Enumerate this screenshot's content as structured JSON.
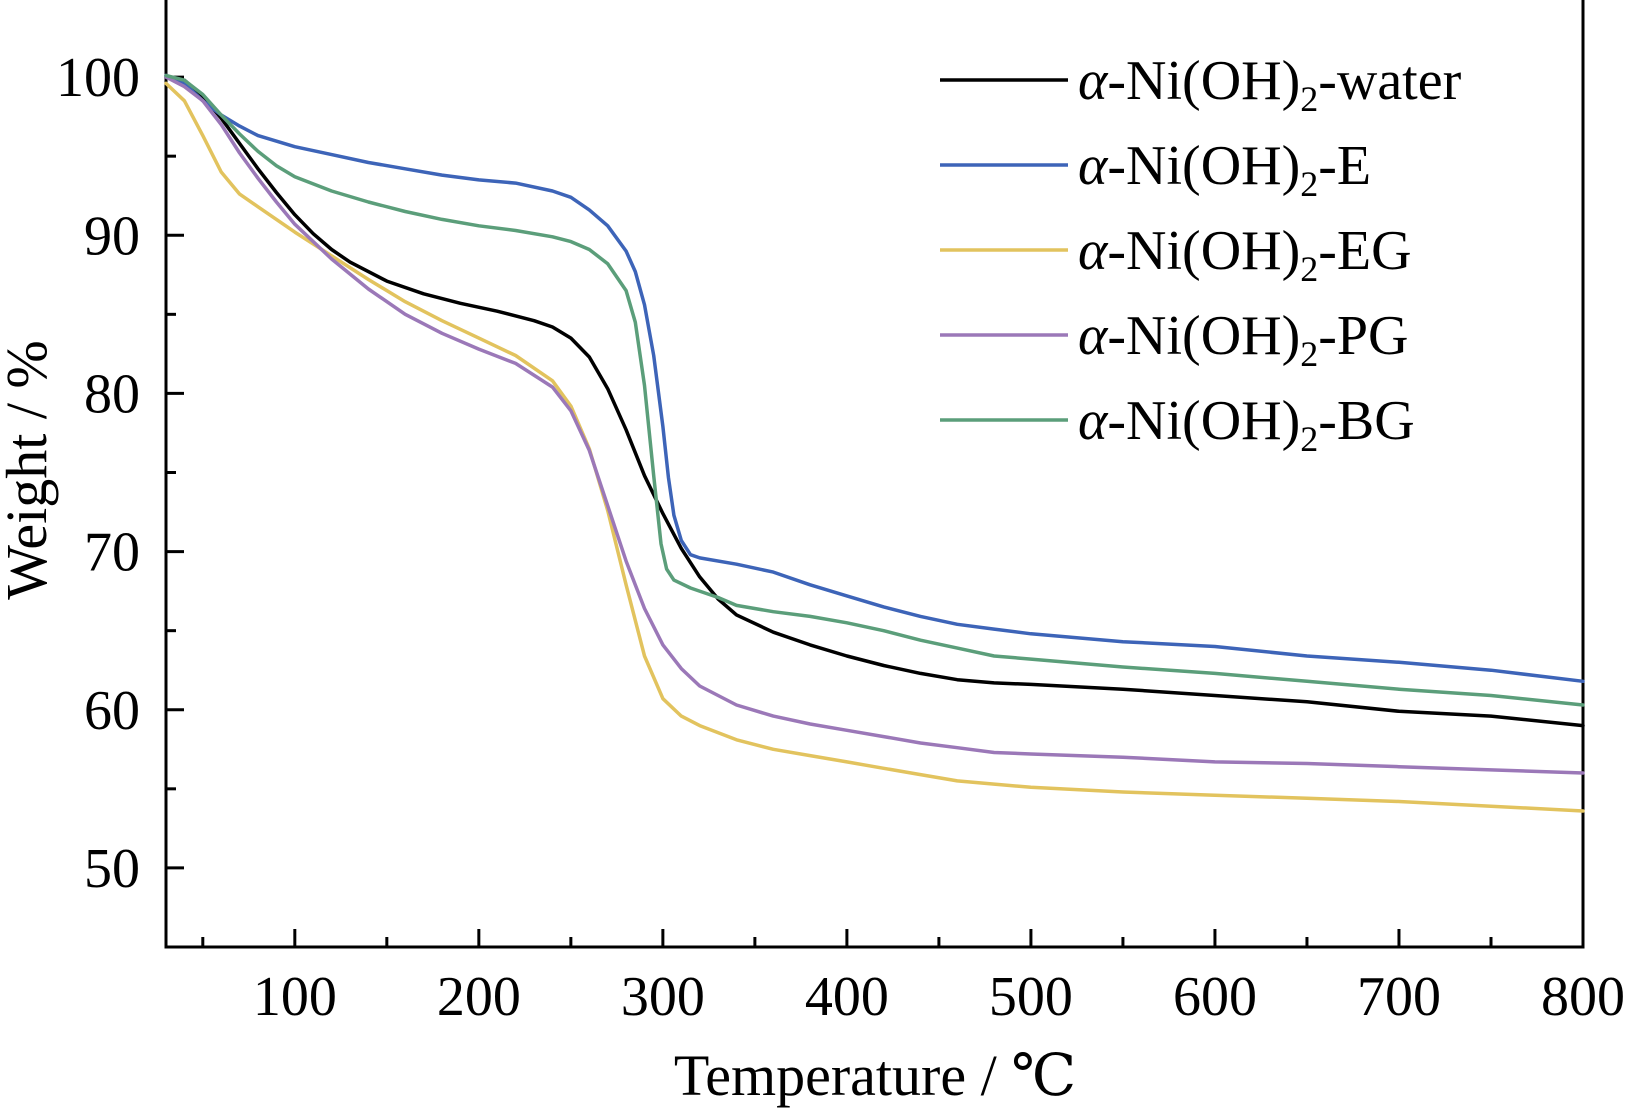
{
  "chart_data": {
    "type": "line",
    "xlabel": "Temperature / ℃",
    "ylabel": "Weight / %",
    "xlim": [
      30,
      800
    ],
    "ylim": [
      45,
      105
    ],
    "x_ticks": [
      100,
      200,
      300,
      400,
      500,
      600,
      700,
      800
    ],
    "y_ticks": [
      50,
      60,
      70,
      80,
      90,
      100
    ],
    "grid": false,
    "legend_position": "top-right",
    "series": [
      {
        "name": "α-Ni(OH)2-water",
        "legend": {
          "prefix": "α",
          "main": "-Ni(OH)",
          "sub": "2",
          "suffix": "-water"
        },
        "color": "#000000",
        "points": [
          [
            30,
            100
          ],
          [
            40,
            99.8
          ],
          [
            50,
            98.8
          ],
          [
            60,
            97.4
          ],
          [
            70,
            95.8
          ],
          [
            80,
            94.2
          ],
          [
            90,
            92.7
          ],
          [
            100,
            91.3
          ],
          [
            110,
            90.1
          ],
          [
            120,
            89.1
          ],
          [
            130,
            88.3
          ],
          [
            150,
            87.1
          ],
          [
            170,
            86.3
          ],
          [
            190,
            85.7
          ],
          [
            210,
            85.2
          ],
          [
            230,
            84.6
          ],
          [
            240,
            84.2
          ],
          [
            250,
            83.5
          ],
          [
            260,
            82.3
          ],
          [
            270,
            80.3
          ],
          [
            280,
            77.7
          ],
          [
            290,
            74.8
          ],
          [
            300,
            72.4
          ],
          [
            310,
            70.2
          ],
          [
            320,
            68.4
          ],
          [
            330,
            67
          ],
          [
            340,
            66
          ],
          [
            360,
            64.9
          ],
          [
            380,
            64.1
          ],
          [
            400,
            63.4
          ],
          [
            420,
            62.8
          ],
          [
            440,
            62.3
          ],
          [
            460,
            61.9
          ],
          [
            480,
            61.7
          ],
          [
            500,
            61.6
          ],
          [
            550,
            61.3
          ],
          [
            600,
            60.9
          ],
          [
            650,
            60.5
          ],
          [
            700,
            59.9
          ],
          [
            750,
            59.6
          ],
          [
            800,
            59
          ]
        ]
      },
      {
        "name": "α-Ni(OH)2-E",
        "legend": {
          "prefix": "α",
          "main": "-Ni(OH)",
          "sub": "2",
          "suffix": "-E"
        },
        "color": "#3d64b8",
        "points": [
          [
            30,
            100.1
          ],
          [
            40,
            99.6
          ],
          [
            50,
            98.5
          ],
          [
            60,
            97.6
          ],
          [
            70,
            96.9
          ],
          [
            80,
            96.3
          ],
          [
            100,
            95.6
          ],
          [
            120,
            95.1
          ],
          [
            140,
            94.6
          ],
          [
            160,
            94.2
          ],
          [
            180,
            93.8
          ],
          [
            200,
            93.5
          ],
          [
            220,
            93.3
          ],
          [
            240,
            92.8
          ],
          [
            250,
            92.4
          ],
          [
            260,
            91.6
          ],
          [
            270,
            90.6
          ],
          [
            280,
            89
          ],
          [
            285,
            87.7
          ],
          [
            290,
            85.6
          ],
          [
            295,
            82.4
          ],
          [
            300,
            77.9
          ],
          [
            303,
            74.7
          ],
          [
            306,
            72.3
          ],
          [
            310,
            70.7
          ],
          [
            315,
            69.8
          ],
          [
            320,
            69.6
          ],
          [
            340,
            69.2
          ],
          [
            360,
            68.7
          ],
          [
            380,
            67.9
          ],
          [
            400,
            67.2
          ],
          [
            420,
            66.5
          ],
          [
            440,
            65.9
          ],
          [
            460,
            65.4
          ],
          [
            480,
            65.1
          ],
          [
            500,
            64.8
          ],
          [
            550,
            64.3
          ],
          [
            600,
            64
          ],
          [
            650,
            63.4
          ],
          [
            700,
            63
          ],
          [
            750,
            62.5
          ],
          [
            800,
            61.8
          ]
        ]
      },
      {
        "name": "α-Ni(OH)2-EG",
        "legend": {
          "prefix": "α",
          "main": "-Ni(OH)",
          "sub": "2",
          "suffix": "-EG"
        },
        "color": "#e2c35e",
        "points": [
          [
            30,
            99.6
          ],
          [
            40,
            98.5
          ],
          [
            50,
            96.3
          ],
          [
            60,
            94
          ],
          [
            70,
            92.6
          ],
          [
            80,
            91.8
          ],
          [
            90,
            91
          ],
          [
            100,
            90.2
          ],
          [
            120,
            88.7
          ],
          [
            140,
            87.2
          ],
          [
            160,
            85.8
          ],
          [
            180,
            84.6
          ],
          [
            200,
            83.5
          ],
          [
            220,
            82.4
          ],
          [
            240,
            80.8
          ],
          [
            250,
            79.2
          ],
          [
            260,
            76.5
          ],
          [
            270,
            72.6
          ],
          [
            280,
            67.9
          ],
          [
            290,
            63.4
          ],
          [
            300,
            60.7
          ],
          [
            310,
            59.6
          ],
          [
            320,
            59
          ],
          [
            340,
            58.1
          ],
          [
            360,
            57.5
          ],
          [
            380,
            57.1
          ],
          [
            400,
            56.7
          ],
          [
            420,
            56.3
          ],
          [
            440,
            55.9
          ],
          [
            460,
            55.5
          ],
          [
            480,
            55.3
          ],
          [
            500,
            55.1
          ],
          [
            550,
            54.8
          ],
          [
            600,
            54.6
          ],
          [
            650,
            54.4
          ],
          [
            700,
            54.2
          ],
          [
            750,
            53.9
          ],
          [
            800,
            53.6
          ]
        ]
      },
      {
        "name": "α-Ni(OH)2-PG",
        "legend": {
          "prefix": "α",
          "main": "-Ni(OH)",
          "sub": "2",
          "suffix": "-PG"
        },
        "color": "#9b78b8",
        "points": [
          [
            30,
            100
          ],
          [
            40,
            99.4
          ],
          [
            50,
            98.5
          ],
          [
            60,
            97
          ],
          [
            70,
            95.2
          ],
          [
            80,
            93.6
          ],
          [
            90,
            92.1
          ],
          [
            100,
            90.7
          ],
          [
            120,
            88.5
          ],
          [
            140,
            86.6
          ],
          [
            160,
            85
          ],
          [
            180,
            83.8
          ],
          [
            200,
            82.8
          ],
          [
            220,
            81.9
          ],
          [
            240,
            80.4
          ],
          [
            250,
            78.9
          ],
          [
            260,
            76.4
          ],
          [
            270,
            72.9
          ],
          [
            280,
            69.4
          ],
          [
            290,
            66.4
          ],
          [
            300,
            64.1
          ],
          [
            310,
            62.6
          ],
          [
            320,
            61.5
          ],
          [
            340,
            60.3
          ],
          [
            360,
            59.6
          ],
          [
            380,
            59.1
          ],
          [
            400,
            58.7
          ],
          [
            420,
            58.3
          ],
          [
            440,
            57.9
          ],
          [
            460,
            57.6
          ],
          [
            480,
            57.3
          ],
          [
            500,
            57.2
          ],
          [
            550,
            57
          ],
          [
            600,
            56.7
          ],
          [
            650,
            56.6
          ],
          [
            700,
            56.4
          ],
          [
            750,
            56.2
          ],
          [
            800,
            56
          ]
        ]
      },
      {
        "name": "α-Ni(OH)2-BG",
        "legend": {
          "prefix": "α",
          "main": "-Ni(OH)",
          "sub": "2",
          "suffix": "-BG"
        },
        "color": "#5b9e7a",
        "points": [
          [
            30,
            100.1
          ],
          [
            40,
            99.8
          ],
          [
            50,
            98.9
          ],
          [
            60,
            97.6
          ],
          [
            70,
            96.4
          ],
          [
            80,
            95.3
          ],
          [
            90,
            94.4
          ],
          [
            100,
            93.7
          ],
          [
            120,
            92.8
          ],
          [
            140,
            92.1
          ],
          [
            160,
            91.5
          ],
          [
            180,
            91
          ],
          [
            200,
            90.6
          ],
          [
            220,
            90.3
          ],
          [
            240,
            89.9
          ],
          [
            250,
            89.6
          ],
          [
            260,
            89.1
          ],
          [
            270,
            88.2
          ],
          [
            280,
            86.5
          ],
          [
            285,
            84.5
          ],
          [
            290,
            80.5
          ],
          [
            295,
            74.8
          ],
          [
            299,
            70.5
          ],
          [
            302,
            68.9
          ],
          [
            306,
            68.2
          ],
          [
            315,
            67.7
          ],
          [
            330,
            67.1
          ],
          [
            340,
            66.6
          ],
          [
            360,
            66.2
          ],
          [
            380,
            65.9
          ],
          [
            400,
            65.5
          ],
          [
            420,
            65
          ],
          [
            440,
            64.4
          ],
          [
            460,
            63.9
          ],
          [
            480,
            63.4
          ],
          [
            500,
            63.2
          ],
          [
            550,
            62.7
          ],
          [
            600,
            62.3
          ],
          [
            650,
            61.8
          ],
          [
            700,
            61.3
          ],
          [
            750,
            60.9
          ],
          [
            800,
            60.3
          ]
        ]
      }
    ]
  }
}
